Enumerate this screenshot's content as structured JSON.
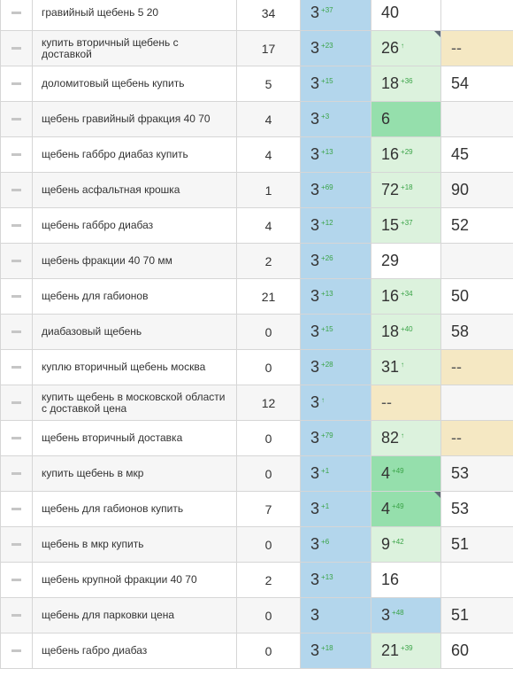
{
  "table": {
    "rows": [
      {
        "query": "гравийный щебень 5 20",
        "freq": "34",
        "p1": "3",
        "p1d": "+37",
        "p2": "40",
        "p2d": "",
        "p2bg": "white",
        "p2corner": false,
        "p3": ""
      },
      {
        "query": "купить вторичный щебень с доставкой",
        "freq": "17",
        "p1": "3",
        "p1d": "+23",
        "p2": "26",
        "p2d": "↑",
        "p2bg": "lightgreen",
        "p2corner": true,
        "p3": "--"
      },
      {
        "query": "доломитовый щебень купить",
        "freq": "5",
        "p1": "3",
        "p1d": "+15",
        "p2": "18",
        "p2d": "+36",
        "p2bg": "lightgreen",
        "p2corner": false,
        "p3": "54"
      },
      {
        "query": "щебень гравийный фракция 40 70",
        "freq": "4",
        "p1": "3",
        "p1d": "+3",
        "p2": "6",
        "p2d": "",
        "p2bg": "green",
        "p2corner": false,
        "p3": ""
      },
      {
        "query": "щебень габбро диабаз купить",
        "freq": "4",
        "p1": "3",
        "p1d": "+13",
        "p2": "16",
        "p2d": "+29",
        "p2bg": "lightgreen",
        "p2corner": false,
        "p3": "45"
      },
      {
        "query": "щебень асфальтная крошка",
        "freq": "1",
        "p1": "3",
        "p1d": "+69",
        "p2": "72",
        "p2d": "+18",
        "p2bg": "lightgreen",
        "p2corner": false,
        "p3": "90"
      },
      {
        "query": "щебень габбро диабаз",
        "freq": "4",
        "p1": "3",
        "p1d": "+12",
        "p2": "15",
        "p2d": "+37",
        "p2bg": "lightgreen",
        "p2corner": false,
        "p3": "52"
      },
      {
        "query": "щебень фракции 40 70 мм",
        "freq": "2",
        "p1": "3",
        "p1d": "+26",
        "p2": "29",
        "p2d": "",
        "p2bg": "white",
        "p2corner": false,
        "p3": ""
      },
      {
        "query": "щебень для габионов",
        "freq": "21",
        "p1": "3",
        "p1d": "+13",
        "p2": "16",
        "p2d": "+34",
        "p2bg": "lightgreen",
        "p2corner": false,
        "p3": "50"
      },
      {
        "query": "диабазовый щебень",
        "freq": "0",
        "p1": "3",
        "p1d": "+15",
        "p2": "18",
        "p2d": "+40",
        "p2bg": "lightgreen",
        "p2corner": false,
        "p3": "58"
      },
      {
        "query": "куплю вторичный щебень москва",
        "freq": "0",
        "p1": "3",
        "p1d": "+28",
        "p2": "31",
        "p2d": "↑",
        "p2bg": "lightgreen",
        "p2corner": false,
        "p3": "--"
      },
      {
        "query": "купить щебень в московской области с доставкой цена",
        "freq": "12",
        "p1": "3",
        "p1d": "↑",
        "p2": "--",
        "p2d": "",
        "p2bg": "na",
        "p2corner": false,
        "p3": ""
      },
      {
        "query": "щебень вторичный доставка",
        "freq": "0",
        "p1": "3",
        "p1d": "+79",
        "p2": "82",
        "p2d": "↑",
        "p2bg": "lightgreen",
        "p2corner": false,
        "p3": "--"
      },
      {
        "query": "купить щебень в мкр",
        "freq": "0",
        "p1": "3",
        "p1d": "+1",
        "p2": "4",
        "p2d": "+49",
        "p2bg": "green",
        "p2corner": false,
        "p3": "53"
      },
      {
        "query": "щебень для габионов купить",
        "freq": "7",
        "p1": "3",
        "p1d": "+1",
        "p2": "4",
        "p2d": "+49",
        "p2bg": "green",
        "p2corner": true,
        "p3": "53"
      },
      {
        "query": "щебень в мкр купить",
        "freq": "0",
        "p1": "3",
        "p1d": "+6",
        "p2": "9",
        "p2d": "+42",
        "p2bg": "lightgreen",
        "p2corner": false,
        "p3": "51"
      },
      {
        "query": "щебень крупной фракции 40 70",
        "freq": "2",
        "p1": "3",
        "p1d": "+13",
        "p2": "16",
        "p2d": "",
        "p2bg": "white",
        "p2corner": false,
        "p3": ""
      },
      {
        "query": "щебень для парковки цена",
        "freq": "0",
        "p1": "3",
        "p1d": "",
        "p2": "3",
        "p2d": "+48",
        "p2bg": "blue",
        "p2corner": false,
        "p3": "51"
      },
      {
        "query": "щебень габро диабаз",
        "freq": "0",
        "p1": "3",
        "p1d": "+18",
        "p2": "21",
        "p2d": "+39",
        "p2bg": "lightgreen",
        "p2corner": false,
        "p3": "60"
      }
    ]
  },
  "colors": {
    "position_blue": "#b3d6ec",
    "light_green": "#dcf2dd",
    "green": "#95dfac",
    "not_found": "#f5e8c3",
    "delta_green": "#3aa347",
    "corner_marker": "#5e6a75"
  }
}
